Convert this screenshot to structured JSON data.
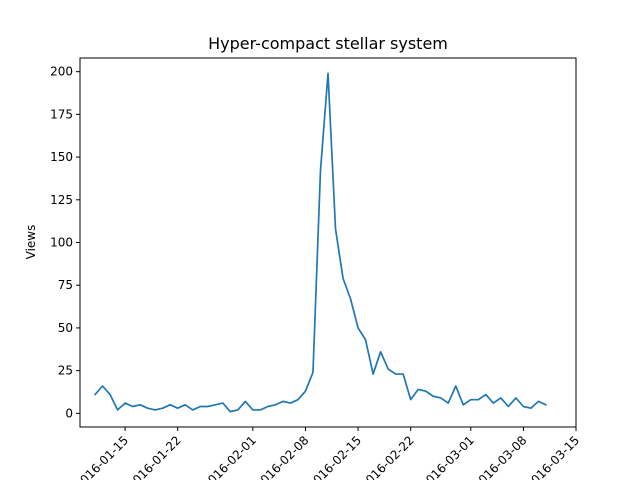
{
  "chart_data": {
    "type": "line",
    "title": "Hyper-compact stellar system",
    "xlabel": "",
    "ylabel": "Views",
    "x_type": "date",
    "x_start": "2016-01-11",
    "x_step_days": 1,
    "xlim": [
      "2016-01-09",
      "2016-03-15"
    ],
    "ylim": [
      -8,
      208
    ],
    "x_ticks": [
      {
        "date": "2016-01-15",
        "label": "2016-01-15"
      },
      {
        "date": "2016-01-22",
        "label": "2016-01-22"
      },
      {
        "date": "2016-02-01",
        "label": "2016-02-01"
      },
      {
        "date": "2016-02-08",
        "label": "2016-02-08"
      },
      {
        "date": "2016-02-15",
        "label": "2016-02-15"
      },
      {
        "date": "2016-02-22",
        "label": "2016-02-22"
      },
      {
        "date": "2016-03-01",
        "label": "2016-03-01"
      },
      {
        "date": "2016-03-08",
        "label": "2016-03-08"
      },
      {
        "date": "2016-03-15",
        "label": "2016-03-15"
      }
    ],
    "y_ticks": [
      0,
      25,
      50,
      75,
      100,
      125,
      150,
      175,
      200
    ],
    "grid": false,
    "legend": "none",
    "series": [
      {
        "color": "#1f77b4",
        "values": [
          11,
          16,
          11,
          2,
          6,
          4,
          5,
          3,
          2,
          3,
          5,
          3,
          5,
          2,
          4,
          4,
          5,
          6,
          1,
          2,
          7,
          2,
          2,
          4,
          5,
          7,
          6,
          8,
          13,
          24,
          142,
          199,
          108,
          79,
          67,
          50,
          43,
          23,
          36,
          26,
          23,
          23,
          8,
          14,
          13,
          10,
          9,
          6,
          16,
          5,
          8,
          8,
          11,
          6,
          9,
          4,
          9,
          4,
          3,
          7,
          5
        ]
      }
    ]
  }
}
